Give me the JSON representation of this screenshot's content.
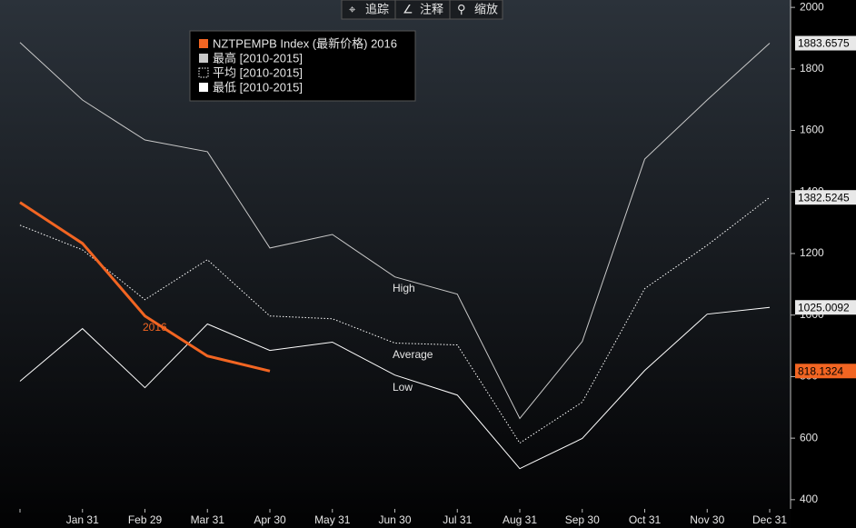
{
  "toolbar": [
    "追踪",
    "注释",
    "缩放"
  ],
  "chart_data": {
    "type": "line",
    "categories": [
      null,
      "Jan 31",
      "Feb 29",
      "Mar 31",
      "Apr 30",
      "May 31",
      "Jun 30",
      "Jul 31",
      "Aug 31",
      "Sep 30",
      "Oct 31",
      "Nov 30",
      "Dec 31"
    ],
    "series": [
      {
        "name": "NZTPEMPB Index (最新价格) 2016",
        "color": "#f26522",
        "style": "solid",
        "values": [
          1366,
          1233,
          997,
          867,
          818.1324,
          null,
          null,
          null,
          null,
          null,
          null,
          null,
          null
        ]
      },
      {
        "name": "最高 [2010-2015]",
        "color": "#c8c8c8",
        "style": "solid",
        "values": [
          1886,
          1699,
          1569,
          1531,
          1218,
          1262,
          1124,
          1068,
          664,
          914,
          1507,
          1699,
          1883.6575
        ]
      },
      {
        "name": "平均 [2010-2015]",
        "color": "#ffffff",
        "style": "dotted",
        "values": [
          1292,
          1212,
          1050,
          1180,
          997,
          988,
          909,
          903,
          584,
          717,
          1086,
          1227,
          1382.5245
        ]
      },
      {
        "name": "最低 [2010-2015]",
        "color": "#ffffff",
        "style": "solid",
        "values": [
          785,
          956,
          764,
          971,
          885,
          912,
          805,
          740,
          501,
          599,
          820,
          1003,
          1025.0092
        ]
      }
    ],
    "annotations": [
      "2016",
      "High",
      "Average",
      "Low"
    ],
    "ylim": [
      370,
      2024
    ],
    "yticks": [
      400,
      600,
      800,
      1000,
      1200,
      1400,
      1600,
      1800,
      2000
    ],
    "axis_side": "right"
  }
}
